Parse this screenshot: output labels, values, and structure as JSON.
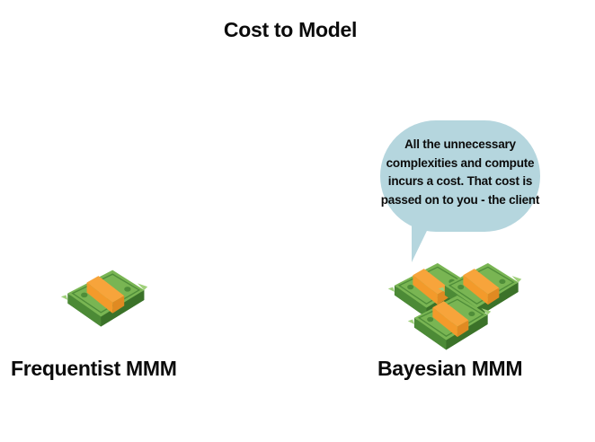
{
  "title": "Cost to Model",
  "left": {
    "label": "Frequentist MMM",
    "money_stacks": 1
  },
  "right": {
    "label": "Bayesian MMM",
    "money_stacks": 3,
    "speech_bubble": "All the unnecessary complexities and compute incurs a cost. That cost is passed on to you - the client"
  },
  "colors": {
    "bubble": "#b5d6de",
    "bill_green": "#6aa54a",
    "bill_dark": "#3e7a2e",
    "band_orange": "#f7a43b"
  },
  "icons": [
    "money-stack-icon"
  ]
}
